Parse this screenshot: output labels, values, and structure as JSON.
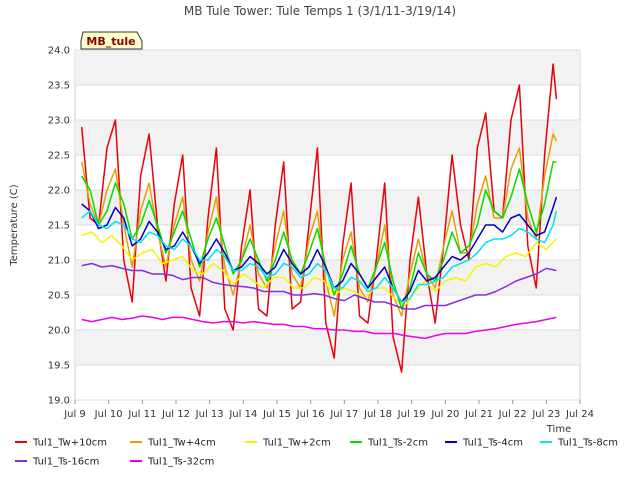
{
  "chart_data": {
    "type": "line",
    "title": "MB Tule Tower: Tule Temps 1 (3/1/11-3/19/14)",
    "xlabel": "Time",
    "ylabel": "Temperature (C)",
    "badge": "MB_tule",
    "xlim": [
      9,
      24
    ],
    "ylim": [
      19.0,
      24.0
    ],
    "x_ticks": [
      9,
      10,
      11,
      12,
      13,
      14,
      15,
      16,
      17,
      18,
      19,
      20,
      21,
      22,
      23,
      24
    ],
    "x_tick_labels": [
      "Jul 9",
      "Jul 10",
      "Jul 11",
      "Jul 12",
      "Jul 13",
      "Jul 14",
      "Jul 15",
      "Jul 16",
      "Jul 17",
      "Jul 18",
      "Jul 19",
      "Jul 20",
      "Jul 21",
      "Jul 22",
      "Jul 23",
      "Jul 24"
    ],
    "y_ticks": [
      19.0,
      19.5,
      20.0,
      20.5,
      21.0,
      21.5,
      22.0,
      22.5,
      23.0,
      23.5,
      24.0
    ],
    "y_tick_labels": [
      "19.0",
      "19.5",
      "20.0",
      "20.5",
      "21.0",
      "21.5",
      "22.0",
      "22.5",
      "23.0",
      "23.5",
      "24.0"
    ],
    "series": [
      {
        "name": "Tul1_Tw+10cm",
        "color": "#e8000b",
        "x": [
          9.2,
          9.45,
          9.7,
          9.95,
          10.2,
          10.45,
          10.7,
          10.95,
          11.2,
          11.45,
          11.7,
          11.95,
          12.2,
          12.45,
          12.7,
          12.95,
          13.2,
          13.45,
          13.7,
          13.95,
          14.2,
          14.45,
          14.7,
          14.95,
          15.2,
          15.45,
          15.7,
          15.95,
          16.2,
          16.45,
          16.7,
          16.95,
          17.2,
          17.45,
          17.7,
          17.95,
          18.2,
          18.45,
          18.7,
          18.95,
          19.2,
          19.45,
          19.7,
          19.95,
          20.2,
          20.45,
          20.7,
          20.95,
          21.2,
          21.45,
          21.7,
          21.95,
          22.2,
          22.45,
          22.7,
          22.95,
          23.2,
          23.3
        ],
        "y": [
          22.9,
          21.6,
          21.5,
          22.6,
          23.0,
          21.0,
          20.4,
          22.2,
          22.8,
          21.5,
          20.7,
          21.8,
          22.5,
          20.6,
          20.2,
          21.6,
          22.6,
          20.3,
          20.0,
          21.2,
          22.0,
          20.3,
          20.2,
          21.5,
          22.4,
          20.3,
          20.4,
          21.5,
          22.6,
          20.1,
          19.6,
          21.2,
          22.1,
          20.2,
          20.1,
          21.0,
          22.1,
          19.9,
          19.4,
          21.0,
          21.9,
          20.8,
          20.1,
          21.2,
          22.5,
          21.5,
          21.0,
          22.6,
          23.1,
          21.7,
          21.6,
          23.0,
          23.5,
          21.2,
          20.6,
          22.5,
          23.8,
          23.3
        ]
      },
      {
        "name": "Tul1_Tw+4cm",
        "color": "#e69f00",
        "x": [
          9.2,
          9.45,
          9.7,
          9.95,
          10.2,
          10.45,
          10.7,
          10.95,
          11.2,
          11.45,
          11.7,
          11.95,
          12.2,
          12.45,
          12.7,
          12.95,
          13.2,
          13.45,
          13.7,
          13.95,
          14.2,
          14.45,
          14.7,
          14.95,
          15.2,
          15.45,
          15.7,
          15.95,
          16.2,
          16.45,
          16.7,
          16.95,
          17.2,
          17.45,
          17.7,
          17.95,
          18.2,
          18.45,
          18.7,
          18.95,
          19.2,
          19.45,
          19.7,
          19.95,
          20.2,
          20.45,
          20.7,
          20.95,
          21.2,
          21.45,
          21.7,
          21.95,
          22.2,
          22.45,
          22.7,
          22.95,
          23.2,
          23.3
        ],
        "y": [
          22.4,
          21.8,
          21.5,
          22.0,
          22.3,
          21.5,
          20.9,
          21.7,
          22.1,
          21.4,
          20.9,
          21.5,
          21.9,
          21.0,
          20.7,
          21.4,
          21.9,
          20.9,
          20.5,
          21.0,
          21.5,
          20.8,
          20.6,
          21.2,
          21.7,
          20.8,
          20.6,
          21.3,
          21.7,
          20.7,
          20.2,
          21.0,
          21.4,
          20.6,
          20.4,
          20.9,
          21.5,
          20.5,
          20.2,
          20.8,
          21.3,
          20.8,
          20.6,
          21.2,
          21.7,
          21.1,
          21.1,
          21.8,
          22.2,
          21.6,
          21.6,
          22.3,
          22.6,
          21.6,
          21.3,
          22.2,
          22.8,
          22.7
        ]
      },
      {
        "name": "Tul1_Tw+2cm",
        "color": "#f5f500",
        "x": [
          9.2,
          9.5,
          9.8,
          10.1,
          10.4,
          10.7,
          11.0,
          11.3,
          11.6,
          11.9,
          12.2,
          12.5,
          12.8,
          13.1,
          13.4,
          13.7,
          14.0,
          14.3,
          14.6,
          14.9,
          15.2,
          15.5,
          15.8,
          16.1,
          16.4,
          16.7,
          17.0,
          17.3,
          17.6,
          17.9,
          18.2,
          18.5,
          18.8,
          19.1,
          19.4,
          19.7,
          20.0,
          20.3,
          20.6,
          20.9,
          21.2,
          21.5,
          21.8,
          22.1,
          22.4,
          22.7,
          23.0,
          23.3
        ],
        "y": [
          21.35,
          21.4,
          21.25,
          21.35,
          21.2,
          21.0,
          21.1,
          21.15,
          20.95,
          21.0,
          21.05,
          20.85,
          20.8,
          20.95,
          20.85,
          20.65,
          20.8,
          20.7,
          20.6,
          20.75,
          20.75,
          20.6,
          20.6,
          20.75,
          20.7,
          20.5,
          20.6,
          20.55,
          20.45,
          20.6,
          20.6,
          20.45,
          20.35,
          20.55,
          20.7,
          20.55,
          20.7,
          20.75,
          20.7,
          20.9,
          20.95,
          20.9,
          21.05,
          21.1,
          21.05,
          21.25,
          21.15,
          21.3
        ]
      },
      {
        "name": "Tul1_Ts-2cm",
        "color": "#00dd00",
        "x": [
          9.2,
          9.45,
          9.7,
          9.95,
          10.2,
          10.45,
          10.7,
          10.95,
          11.2,
          11.45,
          11.7,
          11.95,
          12.2,
          12.45,
          12.7,
          12.95,
          13.2,
          13.45,
          13.7,
          13.95,
          14.2,
          14.45,
          14.7,
          14.95,
          15.2,
          15.45,
          15.7,
          15.95,
          16.2,
          16.45,
          16.7,
          16.95,
          17.2,
          17.45,
          17.7,
          17.95,
          18.2,
          18.45,
          18.7,
          18.95,
          19.2,
          19.45,
          19.7,
          19.95,
          20.2,
          20.45,
          20.7,
          20.95,
          21.2,
          21.45,
          21.7,
          21.95,
          22.2,
          22.45,
          22.7,
          22.95,
          23.2,
          23.3
        ],
        "y": [
          22.2,
          22.0,
          21.5,
          21.7,
          22.1,
          21.8,
          21.3,
          21.5,
          21.85,
          21.5,
          21.1,
          21.4,
          21.7,
          21.3,
          20.9,
          21.3,
          21.6,
          21.2,
          20.8,
          21.0,
          21.3,
          21.0,
          20.7,
          21.0,
          21.4,
          21.0,
          20.8,
          21.1,
          21.45,
          20.9,
          20.5,
          20.8,
          21.2,
          20.8,
          20.6,
          20.9,
          21.25,
          20.7,
          20.3,
          20.6,
          21.1,
          20.8,
          20.7,
          21.0,
          21.4,
          21.1,
          21.2,
          21.5,
          22.0,
          21.7,
          21.6,
          21.9,
          22.3,
          21.8,
          21.4,
          21.8,
          22.4,
          22.4
        ]
      },
      {
        "name": "Tul1_Ts-4cm",
        "color": "#0000cc",
        "x": [
          9.2,
          9.45,
          9.7,
          9.95,
          10.2,
          10.45,
          10.7,
          10.95,
          11.2,
          11.45,
          11.7,
          11.95,
          12.2,
          12.45,
          12.7,
          12.95,
          13.2,
          13.45,
          13.7,
          13.95,
          14.2,
          14.45,
          14.7,
          14.95,
          15.2,
          15.45,
          15.7,
          15.95,
          16.2,
          16.45,
          16.7,
          16.95,
          17.2,
          17.45,
          17.7,
          17.95,
          18.2,
          18.45,
          18.7,
          18.95,
          19.2,
          19.45,
          19.7,
          19.95,
          20.2,
          20.45,
          20.7,
          20.95,
          21.2,
          21.45,
          21.7,
          21.95,
          22.2,
          22.45,
          22.7,
          22.95,
          23.2,
          23.3
        ],
        "y": [
          21.8,
          21.7,
          21.45,
          21.5,
          21.75,
          21.6,
          21.2,
          21.3,
          21.55,
          21.4,
          21.15,
          21.2,
          21.4,
          21.2,
          20.95,
          21.1,
          21.3,
          21.1,
          20.85,
          20.9,
          21.05,
          20.95,
          20.8,
          20.9,
          21.15,
          20.95,
          20.8,
          20.9,
          21.15,
          20.9,
          20.6,
          20.7,
          20.95,
          20.8,
          20.6,
          20.75,
          20.9,
          20.6,
          20.4,
          20.55,
          20.85,
          20.7,
          20.75,
          20.9,
          21.05,
          21.0,
          21.1,
          21.3,
          21.5,
          21.5,
          21.4,
          21.6,
          21.65,
          21.5,
          21.35,
          21.4,
          21.75,
          21.9
        ]
      },
      {
        "name": "Tul1_Ts-8cm",
        "color": "#00e5ee",
        "x": [
          9.2,
          9.45,
          9.7,
          9.95,
          10.2,
          10.45,
          10.7,
          10.95,
          11.2,
          11.45,
          11.7,
          11.95,
          12.2,
          12.45,
          12.7,
          12.95,
          13.2,
          13.45,
          13.7,
          13.95,
          14.2,
          14.45,
          14.7,
          14.95,
          15.2,
          15.45,
          15.7,
          15.95,
          16.2,
          16.45,
          16.7,
          16.95,
          17.2,
          17.45,
          17.7,
          17.95,
          18.2,
          18.45,
          18.7,
          18.95,
          19.2,
          19.45,
          19.7,
          19.95,
          20.2,
          20.45,
          20.7,
          20.95,
          21.2,
          21.45,
          21.7,
          21.95,
          22.2,
          22.45,
          22.7,
          22.95,
          23.2,
          23.3
        ],
        "y": [
          21.6,
          21.7,
          21.5,
          21.45,
          21.55,
          21.5,
          21.3,
          21.25,
          21.4,
          21.35,
          21.2,
          21.15,
          21.3,
          21.2,
          21.0,
          21.0,
          21.15,
          21.05,
          20.85,
          20.85,
          20.95,
          20.9,
          20.75,
          20.8,
          20.95,
          20.9,
          20.75,
          20.8,
          20.95,
          20.85,
          20.6,
          20.6,
          20.75,
          20.7,
          20.55,
          20.6,
          20.75,
          20.6,
          20.4,
          20.45,
          20.65,
          20.65,
          20.7,
          20.75,
          20.9,
          20.95,
          21.0,
          21.1,
          21.25,
          21.3,
          21.3,
          21.35,
          21.45,
          21.4,
          21.3,
          21.25,
          21.5,
          21.7
        ]
      },
      {
        "name": "Tul1_Ts-16cm",
        "color": "#8a2be2",
        "x": [
          9.2,
          9.5,
          9.8,
          10.1,
          10.4,
          10.7,
          11.0,
          11.3,
          11.6,
          11.9,
          12.2,
          12.5,
          12.8,
          13.1,
          13.4,
          13.7,
          14.0,
          14.3,
          14.6,
          14.9,
          15.2,
          15.5,
          15.8,
          16.1,
          16.4,
          16.7,
          17.0,
          17.3,
          17.6,
          17.9,
          18.2,
          18.5,
          18.8,
          19.1,
          19.4,
          19.7,
          20.0,
          20.3,
          20.6,
          20.9,
          21.2,
          21.5,
          21.8,
          22.1,
          22.4,
          22.7,
          23.0,
          23.3
        ],
        "y": [
          20.92,
          20.95,
          20.9,
          20.92,
          20.88,
          20.85,
          20.85,
          20.8,
          20.8,
          20.78,
          20.72,
          20.75,
          20.75,
          20.68,
          20.65,
          20.63,
          20.62,
          20.6,
          20.55,
          20.55,
          20.55,
          20.5,
          20.5,
          20.52,
          20.5,
          20.45,
          20.42,
          20.5,
          20.45,
          20.4,
          20.4,
          20.35,
          20.3,
          20.3,
          20.35,
          20.35,
          20.35,
          20.4,
          20.45,
          20.5,
          20.5,
          20.55,
          20.62,
          20.7,
          20.75,
          20.8,
          20.88,
          20.85
        ]
      },
      {
        "name": "Tul1_Ts-32cm",
        "color": "#ee00ee",
        "x": [
          9.2,
          9.5,
          9.8,
          10.1,
          10.4,
          10.7,
          11.0,
          11.3,
          11.6,
          11.9,
          12.2,
          12.5,
          12.8,
          13.1,
          13.4,
          13.7,
          14.0,
          14.3,
          14.6,
          14.9,
          15.2,
          15.5,
          15.8,
          16.1,
          16.4,
          16.7,
          17.0,
          17.3,
          17.6,
          17.9,
          18.2,
          18.5,
          18.8,
          19.1,
          19.4,
          19.7,
          20.0,
          20.3,
          20.6,
          20.9,
          21.2,
          21.5,
          21.8,
          22.1,
          22.4,
          22.7,
          23.0,
          23.3
        ],
        "y": [
          20.15,
          20.12,
          20.15,
          20.18,
          20.15,
          20.17,
          20.2,
          20.18,
          20.15,
          20.18,
          20.18,
          20.15,
          20.12,
          20.1,
          20.12,
          20.12,
          20.1,
          20.12,
          20.1,
          20.08,
          20.08,
          20.05,
          20.05,
          20.02,
          20.02,
          20.0,
          20.0,
          19.98,
          19.98,
          19.95,
          19.95,
          19.95,
          19.92,
          19.9,
          19.88,
          19.92,
          19.95,
          19.95,
          19.95,
          19.98,
          20.0,
          20.02,
          20.05,
          20.08,
          20.1,
          20.12,
          20.15,
          20.18
        ]
      }
    ]
  }
}
